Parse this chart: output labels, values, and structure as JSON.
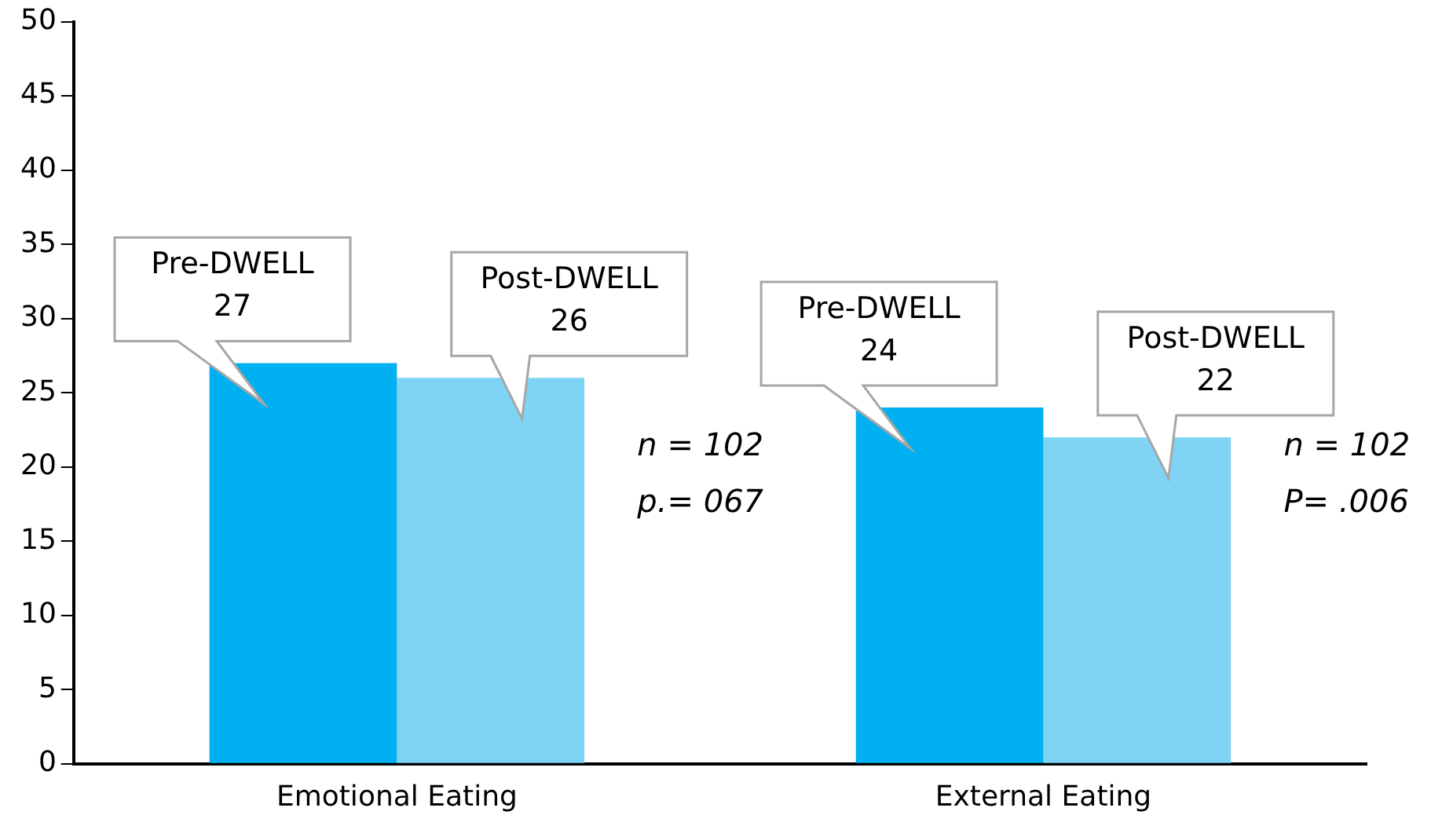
{
  "chart_data": {
    "type": "bar",
    "categories": [
      "Emotional Eating",
      "External Eating"
    ],
    "series": [
      {
        "name": "Pre-DWELL",
        "color": "#00b0f0",
        "values": [
          27,
          24
        ]
      },
      {
        "name": "Post-DWELL",
        "color": "#7fd3f4",
        "values": [
          26,
          22
        ]
      }
    ],
    "ylim": [
      0,
      50
    ],
    "yticks": [
      0,
      5,
      10,
      15,
      20,
      25,
      30,
      35,
      40,
      45,
      50
    ],
    "grid": false,
    "legend": false,
    "data_labels": true,
    "annotations": [
      "n = 102\np.= 067",
      "n = 102\nP= .006"
    ]
  }
}
